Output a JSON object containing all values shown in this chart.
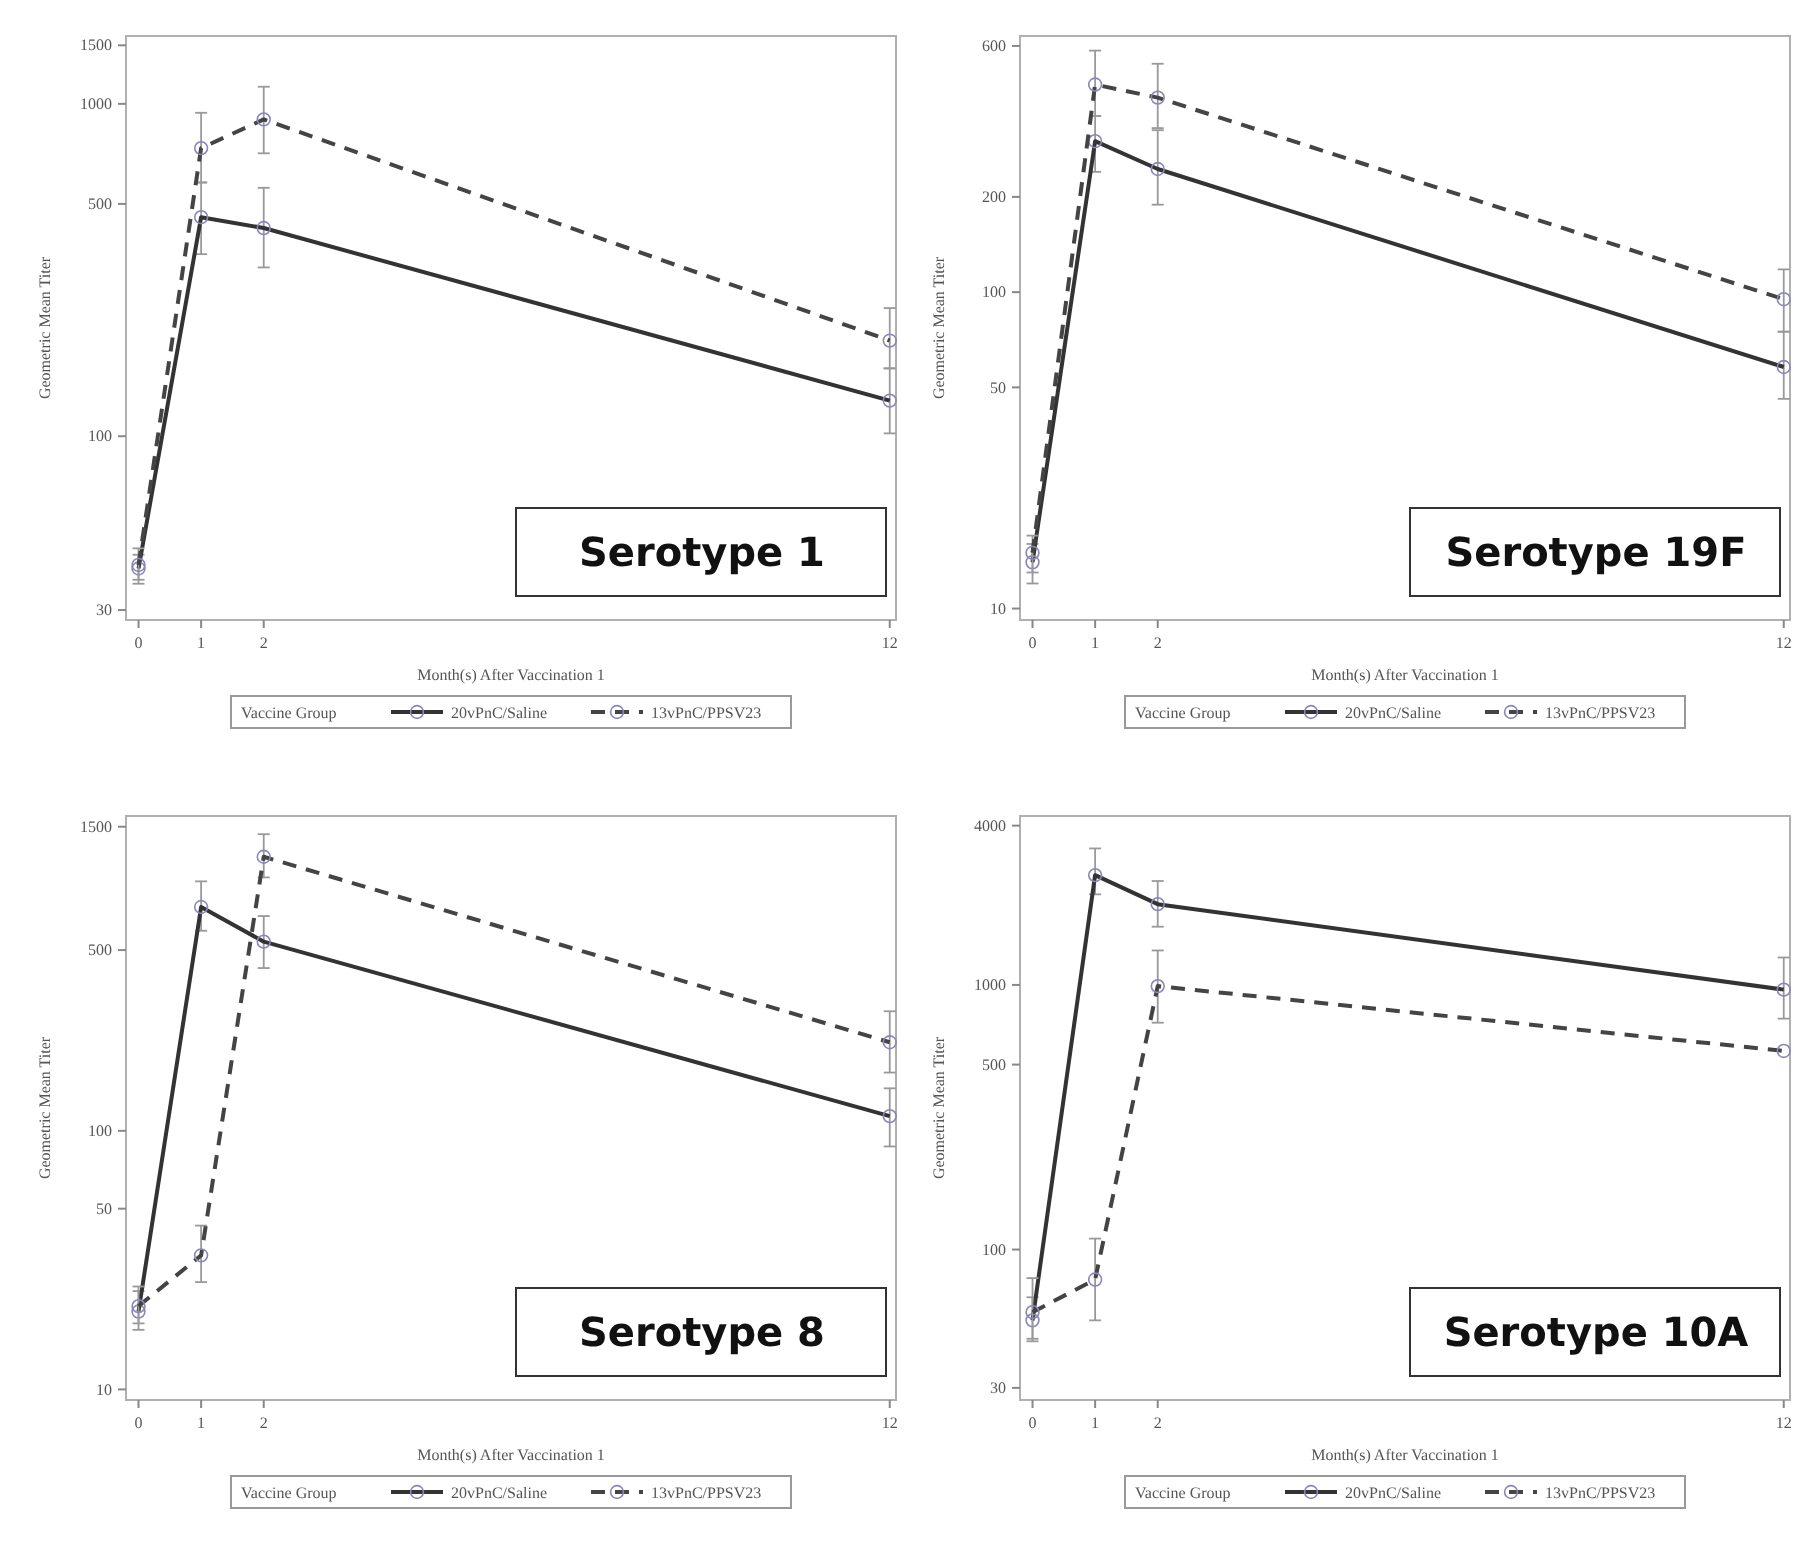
{
  "chart_data": [
    {
      "type": "line",
      "title": "Serotype 1",
      "xlabel": "Month(s) After Vaccination 1",
      "ylabel": "Geometric Mean Titer",
      "legend_title": "Vaccine Group",
      "legend": "bottom",
      "log": true,
      "marker": "circle",
      "grid": false,
      "x": [
        0,
        1,
        2,
        12
      ],
      "xlim": [
        -0.2,
        12.1
      ],
      "xticks": [
        0,
        1,
        2,
        12
      ],
      "ylim": [
        28,
        1600
      ],
      "yticks": [
        30,
        100,
        500,
        1000,
        1500
      ],
      "series": [
        {
          "name": "20vPnC/Saline",
          "color": "#333333",
          "line_style": "solid",
          "values": [
            40,
            456,
            423,
            128
          ],
          "errors": [
            [
              36,
              44
            ],
            [
              353,
              580
            ],
            [
              322,
              559
            ],
            [
              102,
              160
            ]
          ]
        },
        {
          "name": "13vPnC/PPSV23",
          "color": "#444444",
          "line_style": "dashed",
          "values": [
            41,
            736,
            898,
            194
          ],
          "errors": [
            [
              37,
              46
            ],
            [
              580,
              940
            ],
            [
              710,
              1126
            ],
            [
              160,
              243
            ]
          ]
        }
      ]
    },
    {
      "type": "line",
      "title": "Serotype 19F",
      "xlabel": "Month(s) After Vaccination 1",
      "ylabel": "Geometric Mean Titer",
      "legend_title": "Vaccine Group",
      "legend": "bottom",
      "log": true,
      "marker": "circle",
      "grid": false,
      "x": [
        0,
        1,
        2,
        12
      ],
      "xlim": [
        -0.2,
        12.1
      ],
      "xticks": [
        0,
        1,
        2,
        12
      ],
      "ylim": [
        9.2,
        645
      ],
      "yticks": [
        10,
        50,
        100,
        200,
        600
      ],
      "series": [
        {
          "name": "20vPnC/Saline",
          "color": "#333333",
          "line_style": "solid",
          "values": [
            14,
            300,
            245,
            58
          ],
          "errors": [
            [
              12,
              16
            ],
            [
              240,
              360
            ],
            [
              189,
              325
            ],
            [
              46,
              75
            ]
          ]
        },
        {
          "name": "13vPnC/PPSV23",
          "color": "#444444",
          "line_style": "dashed",
          "values": [
            15,
            453,
            412,
            95
          ],
          "errors": [
            [
              13,
              17
            ],
            [
              360,
              580
            ],
            [
              330,
              527
            ],
            [
              75,
              118
            ]
          ]
        }
      ]
    },
    {
      "type": "line",
      "title": "Serotype 8",
      "xlabel": "Month(s) After Vaccination 1",
      "ylabel": "Geometric Mean Titer",
      "legend_title": "Vaccine Group",
      "legend": "bottom",
      "log": true,
      "marker": "circle",
      "grid": false,
      "x": [
        0,
        1,
        2,
        12
      ],
      "xlim": [
        -0.2,
        12.1
      ],
      "xticks": [
        0,
        1,
        2,
        12
      ],
      "ylim": [
        9.1,
        1650
      ],
      "yticks": [
        10,
        50,
        100,
        500,
        1500
      ],
      "series": [
        {
          "name": "20vPnC/Saline",
          "color": "#333333",
          "line_style": "solid",
          "values": [
            20,
            734,
            539,
            114
          ],
          "errors": [
            [
              17,
              24
            ],
            [
              594,
              922
            ],
            [
              426,
              677
            ],
            [
              87,
              146
            ]
          ]
        },
        {
          "name": "13vPnC/PPSV23",
          "color": "#444444",
          "line_style": "dashed",
          "values": [
            21,
            33,
            1148,
            220
          ],
          "errors": [
            [
              18,
              25
            ],
            [
              26,
              43
            ],
            [
              955,
              1403
            ],
            [
              168,
              290
            ]
          ]
        }
      ]
    },
    {
      "type": "line",
      "title": "Serotype 10A",
      "xlabel": "Month(s) After Vaccination 1",
      "ylabel": "Geometric Mean Titer",
      "legend_title": "Vaccine Group",
      "legend": "bottom",
      "log": true,
      "marker": "circle",
      "grid": false,
      "x": [
        0,
        1,
        2,
        12
      ],
      "xlim": [
        -0.2,
        12.1
      ],
      "xticks": [
        0,
        1,
        2,
        12
      ],
      "ylim": [
        27,
        4350
      ],
      "yticks": [
        30,
        100,
        500,
        1000,
        4000
      ],
      "series": [
        {
          "name": "20vPnC/Saline",
          "color": "#333333",
          "line_style": "solid",
          "values": [
            54,
            2600,
            2020,
            960
          ],
          "errors": [
            [
              45,
              66
            ],
            [
              2200,
              3280
            ],
            [
              1660,
              2470
            ],
            [
              746,
              1270
            ]
          ]
        },
        {
          "name": "13vPnC/PPSV23",
          "color": "#444444",
          "line_style": "dashed",
          "values": [
            58,
            77,
            990,
            563
          ],
          "errors": [
            [
              46,
              78
            ],
            [
              54,
              110
            ],
            [
              720,
              1350
            ],
            null
          ]
        }
      ]
    }
  ]
}
